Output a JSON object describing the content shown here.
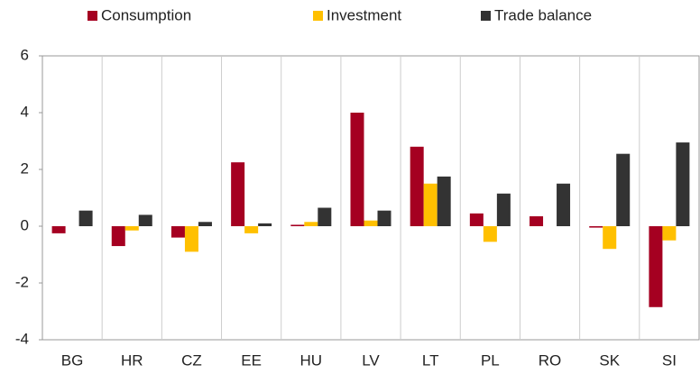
{
  "chart_data": {
    "type": "bar",
    "categories": [
      "BG",
      "HR",
      "CZ",
      "EE",
      "HU",
      "LV",
      "LT",
      "PL",
      "RO",
      "SK",
      "SI"
    ],
    "series": [
      {
        "name": "Consumption",
        "color": "#a50021",
        "values": [
          -0.25,
          -0.7,
          -0.4,
          2.25,
          0.05,
          4.0,
          2.8,
          0.45,
          0.35,
          -0.05,
          -2.85
        ]
      },
      {
        "name": "Investment",
        "color": "#ffc000",
        "values": [
          0,
          -0.15,
          -0.9,
          -0.25,
          0.15,
          0.2,
          1.5,
          -0.55,
          0,
          -0.8,
          -0.5
        ]
      },
      {
        "name": "Trade balance",
        "color": "#333333",
        "values": [
          0.55,
          0.4,
          0.15,
          0.1,
          0.65,
          0.55,
          1.75,
          1.15,
          1.5,
          2.55,
          2.95
        ]
      }
    ],
    "ylim": [
      -4,
      6
    ],
    "yticks": [
      -4,
      -2,
      0,
      2,
      4,
      6
    ]
  }
}
